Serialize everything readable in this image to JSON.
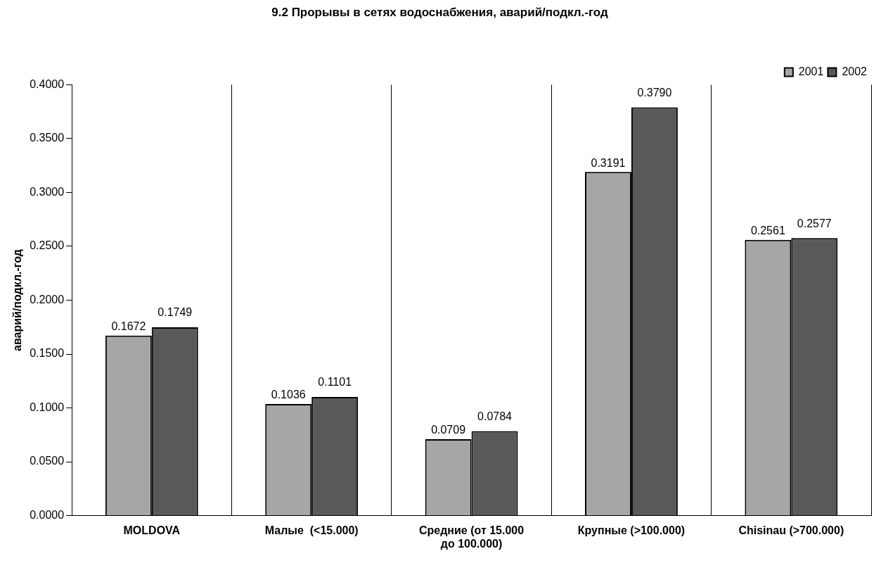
{
  "chart_data": {
    "type": "bar",
    "title": "9.2 Прорывы в сетях водоснабжения, аварий/подкл.-год",
    "ylabel": "аварий/подкл.-год",
    "categories": [
      "MOLDOVA",
      "Малые  (<15.000)",
      "Средние (от 15.000 до 100.000)",
      "Крупные (>100.000)",
      "Chisinau (>700.000)"
    ],
    "series": [
      {
        "name": "2001",
        "color": "#a6a6a6",
        "values": [
          0.1672,
          0.1036,
          0.0709,
          0.3191,
          0.2561
        ],
        "value_labels": [
          "0.1672",
          "0.1036",
          "0.0709",
          "0.3191",
          "0.2561"
        ]
      },
      {
        "name": "2002",
        "color": "#595959",
        "values": [
          0.1749,
          0.1101,
          0.0784,
          0.379,
          0.2577
        ],
        "value_labels": [
          "0.1749",
          "0.1101",
          "0.0784",
          "0.3790",
          "0.2577"
        ]
      }
    ],
    "ylim": [
      0,
      0.4
    ],
    "yticks": [
      {
        "value": 0,
        "label": "0.0000"
      },
      {
        "value": 0.05,
        "label": "0.0500"
      },
      {
        "value": 0.1,
        "label": "0.1000"
      },
      {
        "value": 0.15,
        "label": "0.1500"
      },
      {
        "value": 0.2,
        "label": "0.2000"
      },
      {
        "value": 0.25,
        "label": "0.2500"
      },
      {
        "value": 0.3,
        "label": "0.3000"
      },
      {
        "value": 0.35,
        "label": "0.3500"
      },
      {
        "value": 0.4,
        "label": "0.4000"
      }
    ],
    "grid": "x",
    "legend": "top right"
  }
}
